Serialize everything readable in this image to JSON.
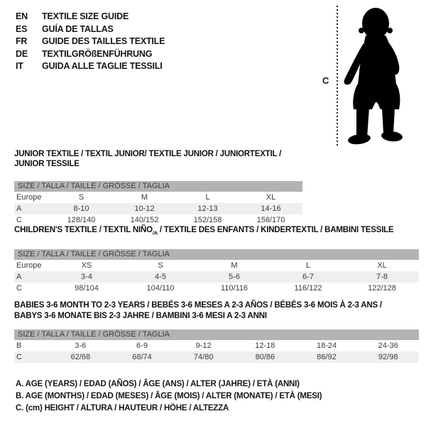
{
  "colors": {
    "header_bar": "#b3b3b3",
    "stripe_row": "#efefef",
    "title_text": "#111111",
    "body_text": "#3a3a3a"
  },
  "language_guide": {
    "items": [
      {
        "code": "EN",
        "text": "TEXTILE SIZE GUIDE"
      },
      {
        "code": "ES",
        "text": "GUÍA DE TALLAS"
      },
      {
        "code": "FR",
        "text": "GUIDE DES TAILLES TEXTILE"
      },
      {
        "code": "DE",
        "text": "TEXTILGRÖßENFÜHRUNG"
      },
      {
        "code": "IT",
        "text": "GUIDA ALLE TAGLIE TESSILI"
      }
    ]
  },
  "figure": {
    "height_label": "C"
  },
  "tables": [
    {
      "id": "junior-textile",
      "title_lines": [
        [
          {
            "text": "JUNIOR TEXTILE / TEXTIL JUNIOR/ TEXTILE JUNIOR / JUNIORTEXTIL / JUNIOR TESSILE"
          }
        ]
      ],
      "header": "SIZE / TALLA / TAILLE / GRÖSSE / TAGLIA",
      "rows": [
        {
          "label": "Europe",
          "values": [
            "S",
            "M",
            "L",
            "XL"
          ]
        },
        {
          "label": "A",
          "values": [
            "8-10",
            "10-12",
            "12-13",
            "14-16"
          ]
        },
        {
          "label": "C",
          "values": [
            "128/140",
            "140/152",
            "152/158",
            "158/170"
          ]
        }
      ]
    },
    {
      "id": "childrens-textile",
      "title_lines": [
        [
          {
            "text": "CHILDREN'S TEXTILE / TEXTIL NIÑO"
          },
          {
            "text": "/A",
            "sub": true
          },
          {
            "text": " / TEXTILE DES ENFANTS / KINDERTEXTIL / BAMBINI TESSILE"
          }
        ]
      ],
      "header": "SIZE / TALLA / TAILLE / GRÖSSE / TAGLIA",
      "rows": [
        {
          "label": "Europe",
          "values": [
            "XS",
            "S",
            "M",
            "L",
            "XL"
          ]
        },
        {
          "label": "A",
          "values": [
            "3-4",
            "4-5",
            "5-6",
            "6-7",
            "7-8"
          ]
        },
        {
          "label": "C",
          "values": [
            "98/104",
            "104/110",
            "110/116",
            "116/122",
            "122/128"
          ]
        }
      ]
    },
    {
      "id": "babies-textile",
      "title_lines": [
        [
          {
            "text": "BABIES 3-6 MONTH TO 2-3 YEARS / BEBÉS 3-6 MESES A 2-3 AÑOS / BÉBÉS 3-6 MOIS À 2-3 ANS /"
          }
        ],
        [
          {
            "text": "BABYS 3-6 MONATE BIS 2-3 JAHRE / BAMBINI 3-6 MESI A 2-3 ANNI"
          }
        ]
      ],
      "header": "SIZE / TALLA / TAILLE / GRÖSSE / TAGLIA",
      "rows": [
        {
          "label": "B",
          "values": [
            "3-6",
            "6-9",
            "9-12",
            "12-18",
            "18-24",
            "24-36"
          ]
        },
        {
          "label": "C",
          "values": [
            "62/68",
            "68/74",
            "74/80",
            "80/86",
            "86/92",
            "92/98"
          ]
        }
      ]
    }
  ],
  "notes": {
    "items": [
      "A. AGE (YEARS) / EDAD (AÑOS) / ÂGE (ANS) / ALTER (JAHRE) / ETÀ (ANNI)",
      "B. AGE (MONTHS) / EDAD (MESES) / ÂGE (MOIS) / ALTER (MONATE) / ETÀ (MESI)",
      "C. (cm) HEIGHT / ALTURA / HAUTEUR / HÖHE / ALTEZZA"
    ]
  }
}
